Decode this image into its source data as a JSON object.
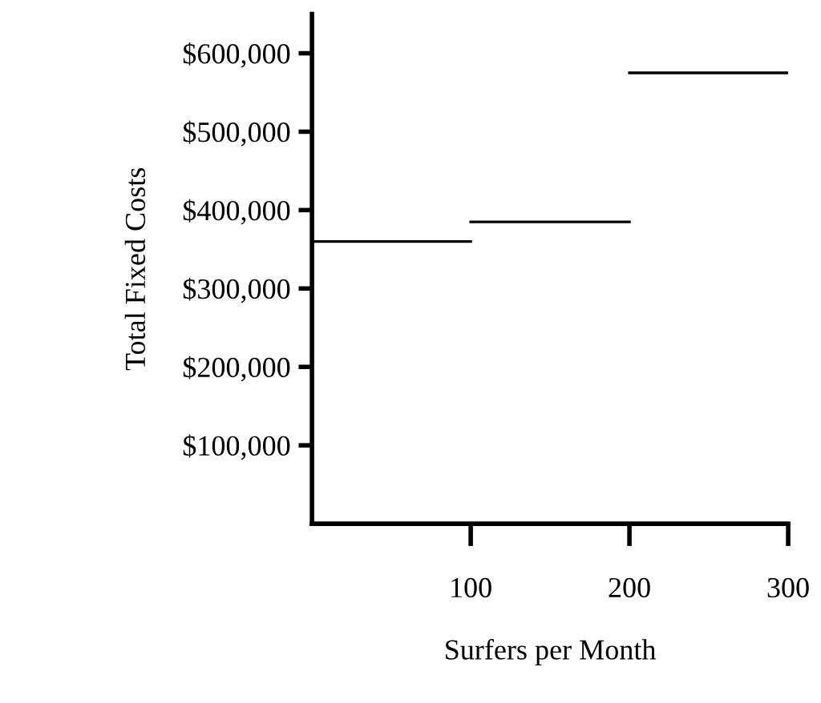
{
  "chart_data": {
    "type": "line",
    "xlabel": "Surfers per Month",
    "ylabel": "Total Fixed Costs",
    "series": [
      {
        "color": "#000000",
        "x": [
          0,
          100
        ],
        "values": [
          360000,
          360000
        ]
      },
      {
        "color": "#000000",
        "x": [
          100,
          200
        ],
        "values": [
          385000,
          385000
        ]
      },
      {
        "color": "#000000",
        "x": [
          200,
          300
        ],
        "values": [
          575000,
          575000
        ]
      }
    ],
    "xlim": [
      0,
      300
    ],
    "xticks": [
      100,
      200,
      300
    ],
    "ylim": [
      0,
      650000
    ],
    "yticks": [
      {
        "value": 100000,
        "label": "$100,000"
      },
      {
        "value": 200000,
        "label": "$200,000"
      },
      {
        "value": 300000,
        "label": "$300,000"
      },
      {
        "value": 400000,
        "label": "$400,000"
      },
      {
        "value": 500000,
        "label": "$500,000"
      },
      {
        "value": 600000,
        "label": "$600,000"
      }
    ],
    "grid": false,
    "marker": "none",
    "line_style": "solid"
  }
}
